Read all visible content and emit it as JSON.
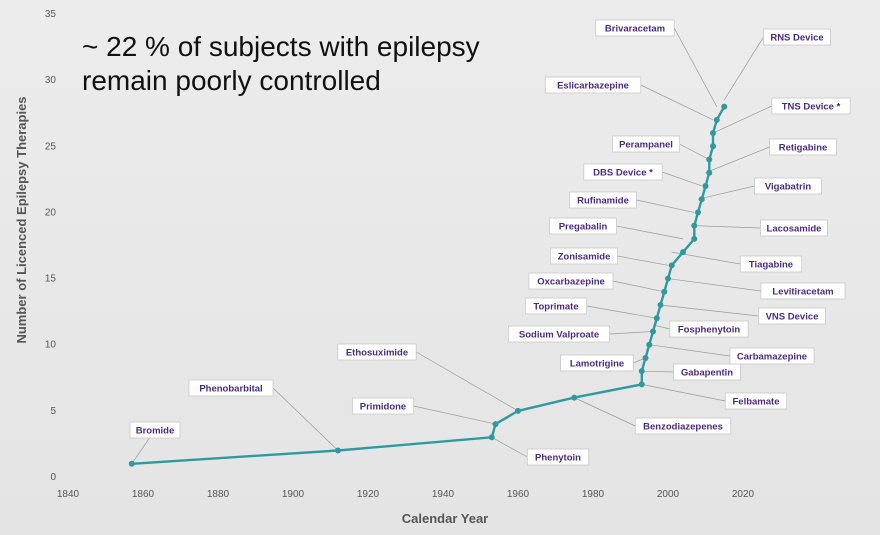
{
  "headline": {
    "line1": "~ 22 % of subjects with epilepsy",
    "line2": "remain poorly controlled"
  },
  "colors": {
    "series": "#2e9aa0",
    "callout_text": "#4b2a83"
  },
  "chart_data": {
    "type": "line",
    "title": "",
    "xlabel": "Calendar Year",
    "ylabel": "Number of Licenced Epilepsy Therapies",
    "xlim": [
      1840,
      2020
    ],
    "ylim": [
      0,
      35
    ],
    "xticks": [
      1840,
      1860,
      1880,
      1900,
      1920,
      1940,
      1960,
      1980,
      2000,
      2020
    ],
    "yticks": [
      0,
      5,
      10,
      15,
      20,
      25,
      30,
      35
    ],
    "grid": false,
    "legend": "none",
    "series": [
      {
        "x": [
          1857,
          1912,
          1953,
          1954,
          1960,
          1975,
          1993,
          1993,
          1994,
          1995,
          1996,
          1997,
          1998,
          1999,
          2000,
          2001,
          2004,
          2007,
          2007,
          2008,
          2009,
          2010,
          2011,
          2011,
          2012,
          2012,
          2013,
          2015
        ],
        "y": [
          1,
          2,
          3,
          4,
          5,
          6,
          7,
          8,
          9,
          10,
          11,
          12,
          13,
          14,
          15,
          16,
          17,
          18,
          19,
          20,
          21,
          22,
          23,
          24,
          25,
          26,
          27,
          28
        ]
      }
    ],
    "annotations": [
      {
        "text": "Bromide",
        "x": 1857,
        "y": 1,
        "side": "left"
      },
      {
        "text": "Phenobarbital",
        "x": 1912,
        "y": 2,
        "side": "left"
      },
      {
        "text": "Phenytoin",
        "x": 1953,
        "y": 3,
        "side": "right"
      },
      {
        "text": "Primidone",
        "x": 1954,
        "y": 4,
        "side": "left"
      },
      {
        "text": "Ethosuximide",
        "x": 1960,
        "y": 5,
        "side": "left"
      },
      {
        "text": "Benzodiazepenes",
        "x": 1975,
        "y": 6,
        "side": "right"
      },
      {
        "text": "Felbamate",
        "x": 1993,
        "y": 7,
        "side": "right"
      },
      {
        "text": "Gabapentin",
        "x": 1993,
        "y": 8,
        "side": "right"
      },
      {
        "text": "Lamotrigine",
        "x": 1994,
        "y": 9,
        "side": "left"
      },
      {
        "text": "Carbamazepine",
        "x": 1995,
        "y": 10,
        "side": "right"
      },
      {
        "text": "Sodium Valproate",
        "x": 1996,
        "y": 11,
        "side": "left"
      },
      {
        "text": "Fosphenytoin",
        "x": 1996,
        "y": 11.5,
        "side": "right"
      },
      {
        "text": "Toprimate",
        "x": 1997,
        "y": 12,
        "side": "left"
      },
      {
        "text": "VNS Device",
        "x": 1998,
        "y": 13,
        "side": "right"
      },
      {
        "text": "Oxcarbazepine",
        "x": 1999,
        "y": 14,
        "side": "left"
      },
      {
        "text": "Levitiracetam",
        "x": 2000,
        "y": 15,
        "side": "right"
      },
      {
        "text": "Zonisamide",
        "x": 2000,
        "y": 16,
        "side": "left"
      },
      {
        "text": "Tiagabine",
        "x": 2001,
        "y": 17,
        "side": "right"
      },
      {
        "text": "Pregabalin",
        "x": 2004,
        "y": 18,
        "side": "left"
      },
      {
        "text": "Lacosamide",
        "x": 2007,
        "y": 19,
        "side": "right"
      },
      {
        "text": "Rufinamide",
        "x": 2007,
        "y": 20,
        "side": "left"
      },
      {
        "text": "Vigabatrin",
        "x": 2008,
        "y": 21,
        "side": "right"
      },
      {
        "text": "DBS Device *",
        "x": 2009,
        "y": 22,
        "side": "left"
      },
      {
        "text": "Retigabine",
        "x": 2010,
        "y": 23,
        "side": "right"
      },
      {
        "text": "Perampanel",
        "x": 2011,
        "y": 24,
        "side": "left"
      },
      {
        "text": "TNS Device *",
        "x": 2012,
        "y": 26,
        "side": "right"
      },
      {
        "text": "Eslicarbazepine",
        "x": 2012,
        "y": 27,
        "side": "left"
      },
      {
        "text": "Brivaracetam",
        "x": 2013,
        "y": 28,
        "side": "left"
      },
      {
        "text": "RNS Device",
        "x": 2015,
        "y": 28.5,
        "side": "right"
      }
    ]
  }
}
